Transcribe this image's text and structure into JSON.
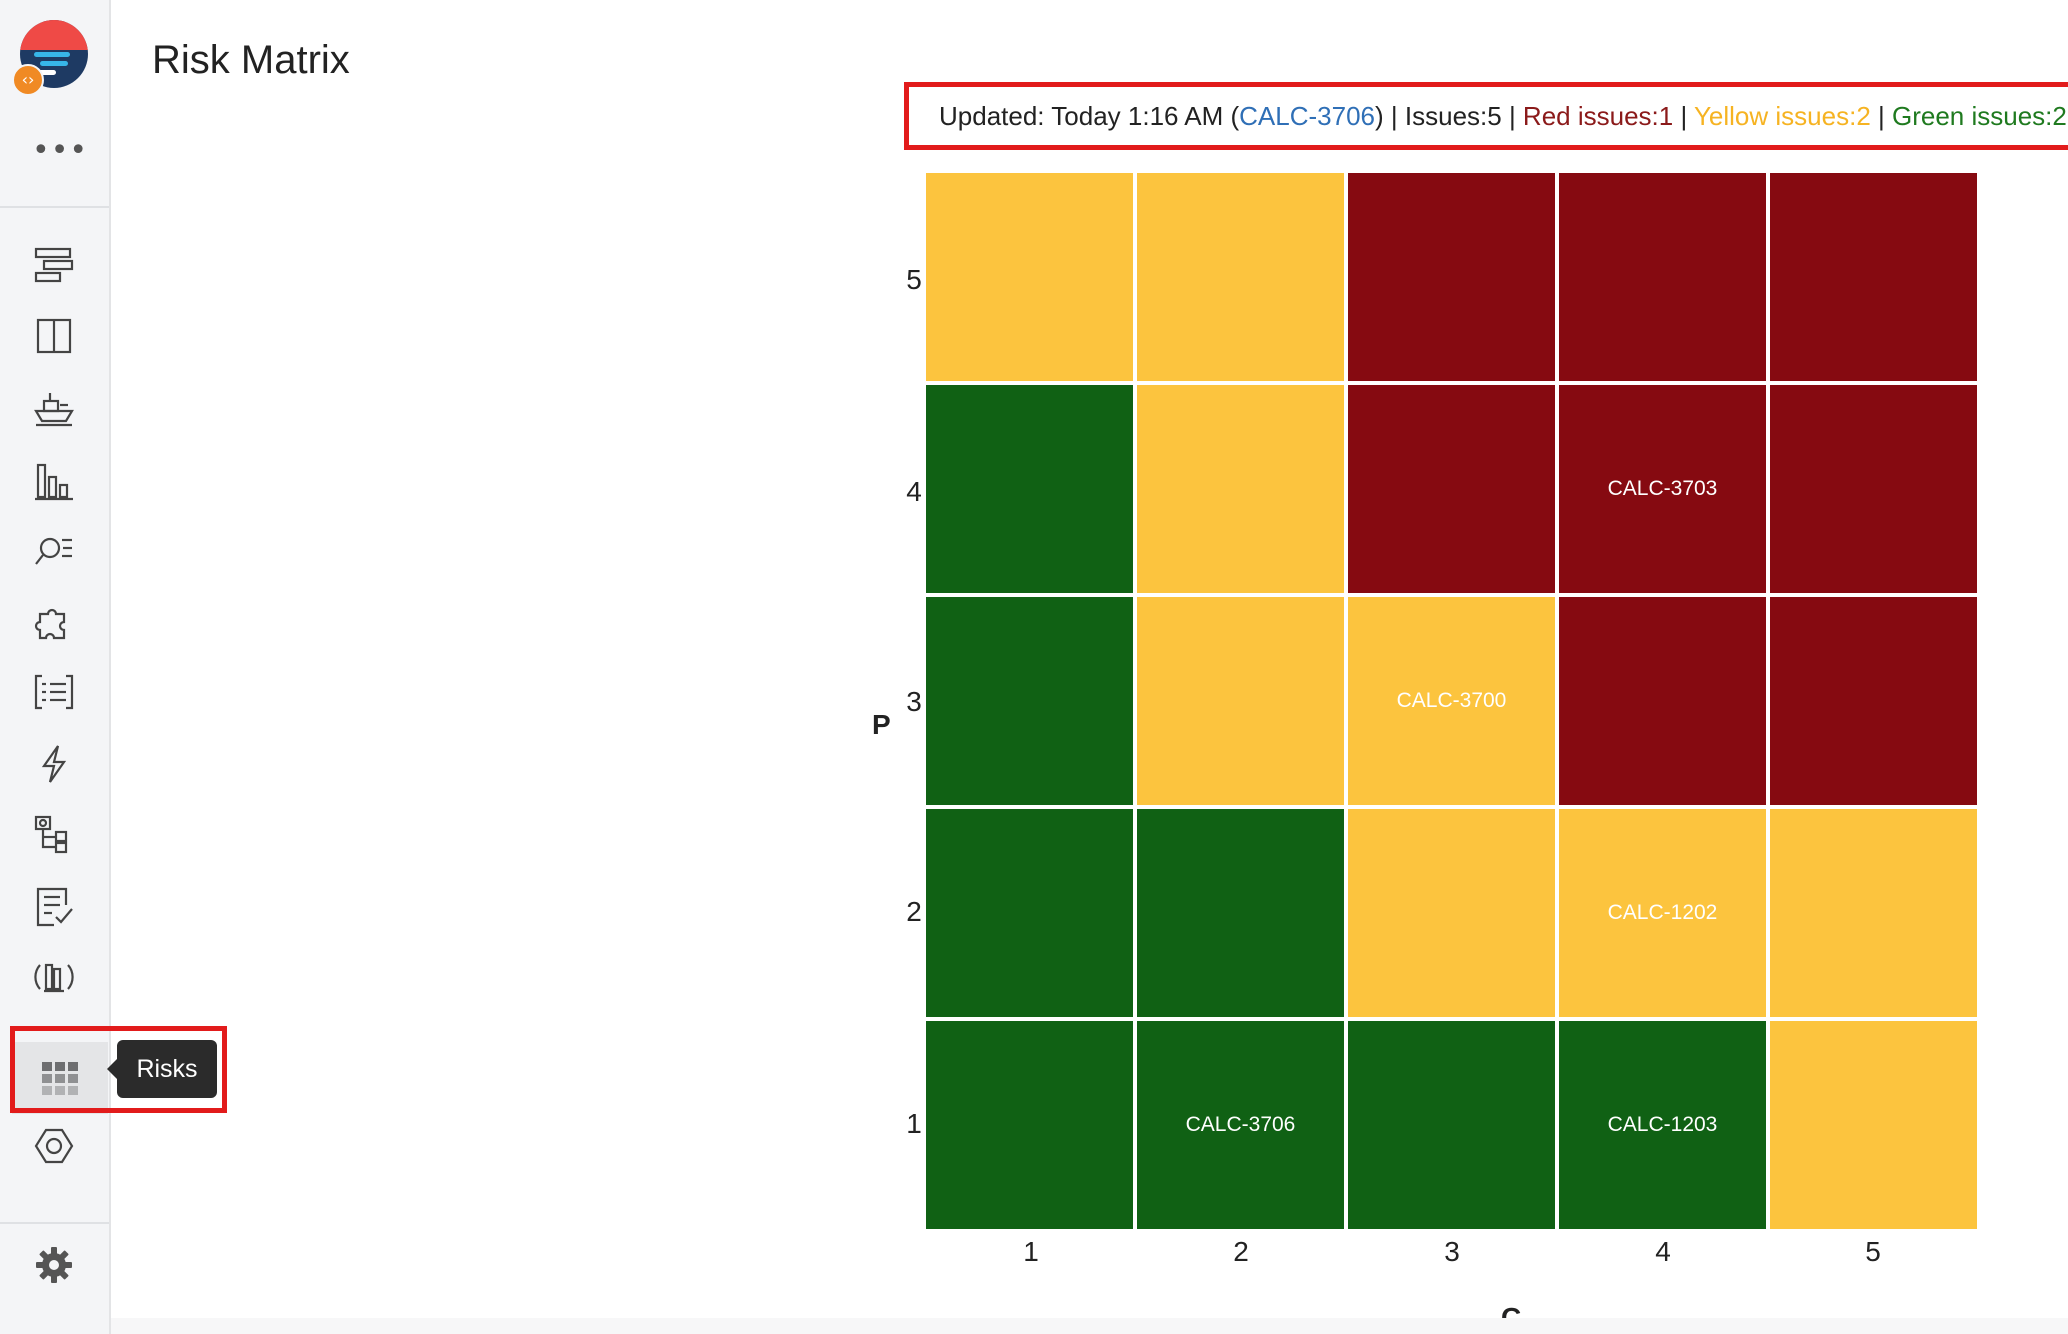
{
  "page": {
    "title": "Risk Matrix"
  },
  "sidebar": {
    "more_label": "•••",
    "items": [
      {
        "name": "timeline-icon"
      },
      {
        "name": "board-icon"
      },
      {
        "name": "ship-icon"
      },
      {
        "name": "bar-chart-icon"
      },
      {
        "name": "search-list-icon"
      },
      {
        "name": "puzzle-icon"
      },
      {
        "name": "list-icon"
      },
      {
        "name": "lightning-icon"
      },
      {
        "name": "hierarchy-icon"
      },
      {
        "name": "checklist-icon"
      },
      {
        "name": "library-icon"
      },
      {
        "name": "risks-grid-icon",
        "active": true
      },
      {
        "name": "hexagon-icon"
      }
    ],
    "settings_icon": "gear-icon",
    "tooltip": "Risks"
  },
  "status": {
    "updated_prefix": "Updated: Today 1:16 AM (",
    "updated_link": "CALC-3706",
    "updated_suffix": ")",
    "separator": " | ",
    "issues": "Issues:5",
    "red": "Red issues:1",
    "yellow": "Yellow issues:2",
    "green": "Green issues:2"
  },
  "colors": {
    "red": "#860a11",
    "yellow": "#fcc43e",
    "green": "#106114",
    "highlight": "#e21b1b"
  },
  "matrix": {
    "y_axis_title": "P",
    "x_axis_title": "C",
    "y_ticks": [
      "5",
      "4",
      "3",
      "2",
      "1"
    ],
    "x_ticks": [
      "1",
      "2",
      "3",
      "4",
      "5"
    ],
    "rows": [
      [
        {
          "color": "yellow",
          "label": ""
        },
        {
          "color": "yellow",
          "label": ""
        },
        {
          "color": "red",
          "label": ""
        },
        {
          "color": "red",
          "label": ""
        },
        {
          "color": "red",
          "label": ""
        }
      ],
      [
        {
          "color": "green",
          "label": ""
        },
        {
          "color": "yellow",
          "label": ""
        },
        {
          "color": "red",
          "label": ""
        },
        {
          "color": "red",
          "label": "CALC-3703"
        },
        {
          "color": "red",
          "label": ""
        }
      ],
      [
        {
          "color": "green",
          "label": ""
        },
        {
          "color": "yellow",
          "label": ""
        },
        {
          "color": "yellow",
          "label": "CALC-3700"
        },
        {
          "color": "red",
          "label": ""
        },
        {
          "color": "red",
          "label": ""
        }
      ],
      [
        {
          "color": "green",
          "label": ""
        },
        {
          "color": "green",
          "label": ""
        },
        {
          "color": "yellow",
          "label": ""
        },
        {
          "color": "yellow",
          "label": "CALC-1202"
        },
        {
          "color": "yellow",
          "label": ""
        }
      ],
      [
        {
          "color": "green",
          "label": ""
        },
        {
          "color": "green",
          "label": "CALC-3706"
        },
        {
          "color": "green",
          "label": ""
        },
        {
          "color": "green",
          "label": "CALC-1203"
        },
        {
          "color": "yellow",
          "label": ""
        }
      ]
    ]
  }
}
